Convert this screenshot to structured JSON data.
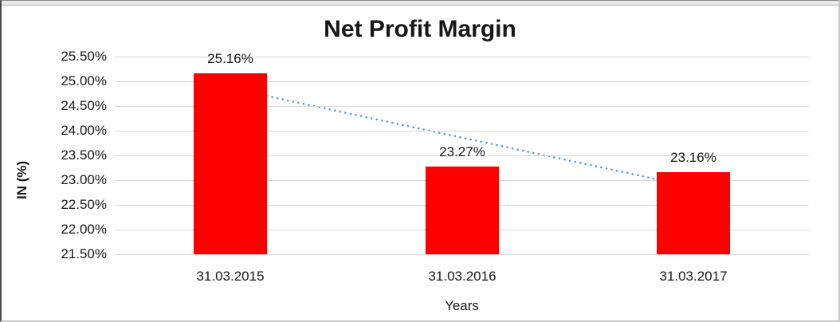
{
  "chart_data": {
    "type": "bar",
    "title": "Net Profit Margin",
    "xlabel": "Years",
    "ylabel": "IN (%)",
    "categories": [
      "31.03.2015",
      "31.03.2016",
      "31.03.2017"
    ],
    "values": [
      25.16,
      23.27,
      23.16
    ],
    "data_labels": [
      "25.16%",
      "23.27%",
      "23.16%"
    ],
    "ylim": [
      21.5,
      25.5
    ],
    "ytick_step": 0.5,
    "ytick_labels": [
      "25.50%",
      "25.00%",
      "24.50%",
      "24.00%",
      "23.50%",
      "23.00%",
      "22.50%",
      "22.00%",
      "21.50%"
    ],
    "grid": true,
    "legend": "none",
    "bar_color": "#ff0000",
    "gridline_color": "#d9d9d9",
    "text_color": "#171717",
    "trendline": {
      "type": "linear",
      "style": "dotted",
      "color": "#5b9bd5",
      "start_value": 24.86,
      "end_value": 22.86
    }
  }
}
